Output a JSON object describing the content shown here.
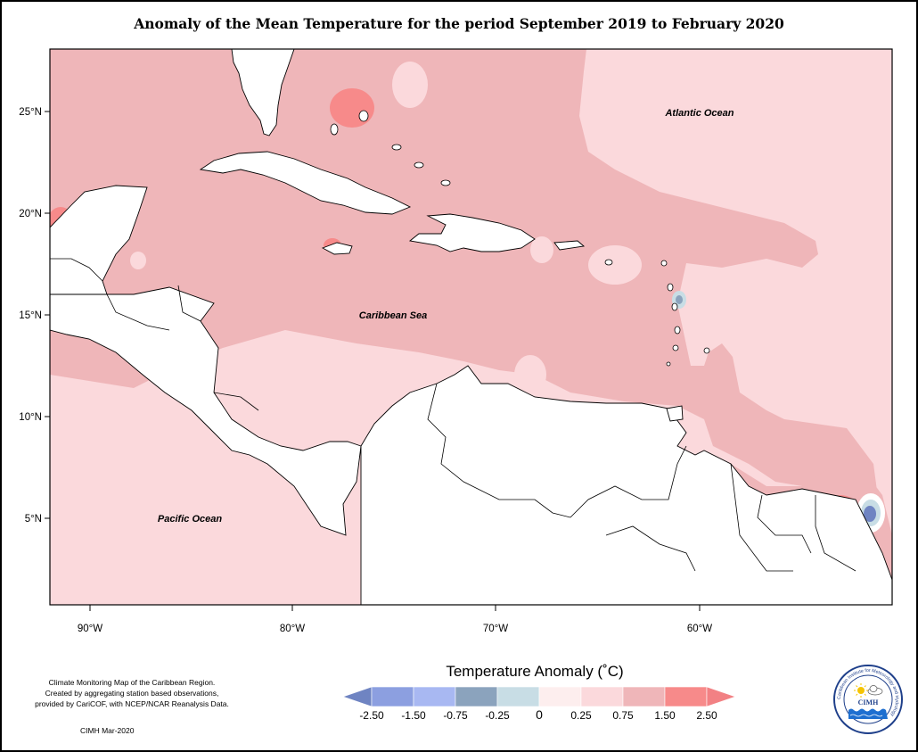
{
  "title": "Anomaly of the Mean Temperature for the period September 2019 to February 2020",
  "labels": {
    "atlantic": "Atlantic Ocean",
    "caribbean": "Caribbean Sea",
    "pacific": "Pacific Ocean"
  },
  "axes": {
    "lat_ticks": [
      "25°N",
      "20°N",
      "15°N",
      "10°N",
      "5°N"
    ],
    "lon_ticks": [
      "90°W",
      "80°W",
      "70°W",
      "60°W"
    ]
  },
  "legend": {
    "title": "Temperature Anomaly (˚C)",
    "tick_labels": [
      "-2.50",
      "-1.50",
      "-0.75",
      "-0.25",
      "0",
      "0.25",
      "0.75",
      "1.50",
      "2.50"
    ],
    "colors": [
      "#6f84c2",
      "#8c9fe0",
      "#a8b8f2",
      "#8ba3bd",
      "#c8dde5",
      "#fdeeee",
      "#fbd9dc",
      "#efb6b9",
      "#f78a8a",
      "#f28184"
    ]
  },
  "credit": {
    "lines": [
      "Climate Monitoring Map of the Caribbean Region.",
      "Created by aggregating station based observations,",
      "provided by CariCOF, with NCEP/NCAR Reanalysis Data."
    ],
    "date": "CIMH Mar-2020"
  },
  "logo": {
    "name": "CIMH",
    "ring_text": "Caribbean Institute for Meteorology and Hydrology"
  }
}
